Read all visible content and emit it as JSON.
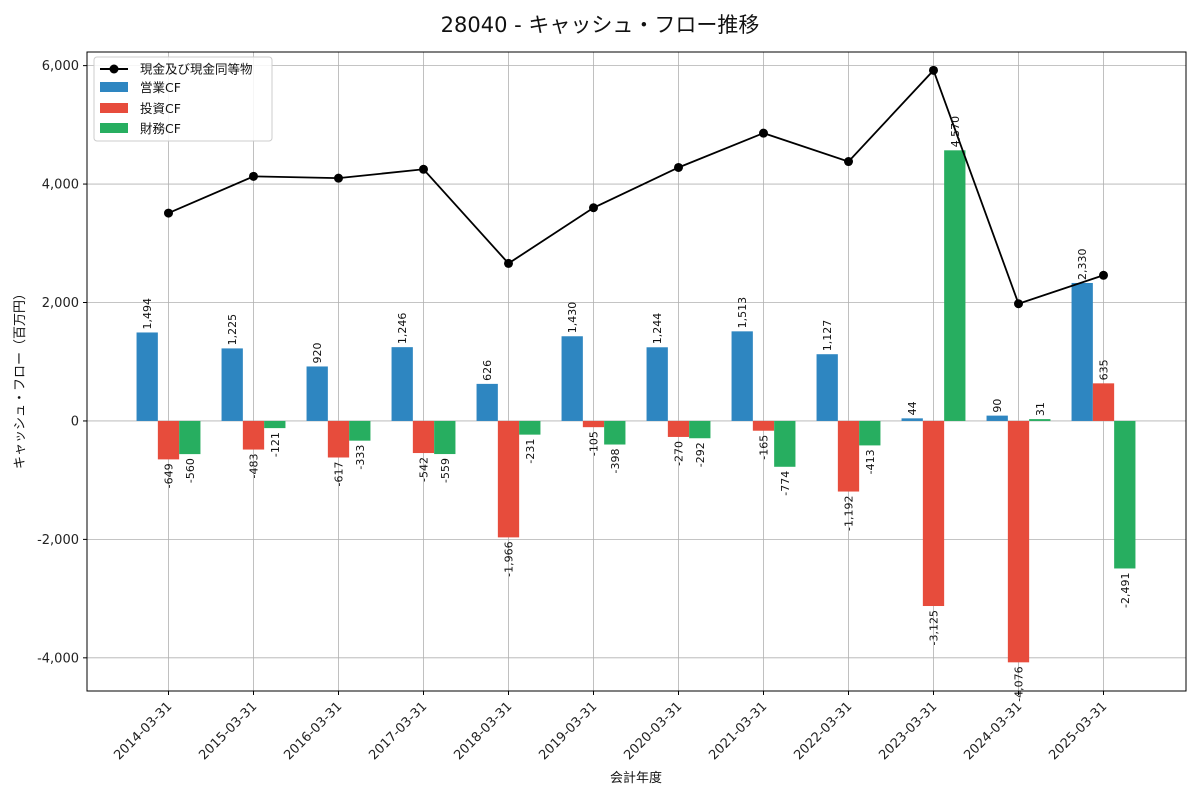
{
  "chart_data": {
    "type": "bar",
    "title": "28040 - キャッシュ・フロー推移",
    "xlabel": "会計年度",
    "ylabel": "キャッシュ・フロー（百万円）",
    "categories": [
      "2014-03-31",
      "2015-03-31",
      "2016-03-31",
      "2017-03-31",
      "2018-03-31",
      "2019-03-31",
      "2020-03-31",
      "2021-03-31",
      "2022-03-31",
      "2023-03-31",
      "2024-03-31",
      "2025-03-31"
    ],
    "ylim": [
      -4560,
      6230
    ],
    "yticks": [
      -4000,
      -2000,
      0,
      2000,
      4000,
      6000
    ],
    "ytick_labels": [
      "-4,000",
      "-2,000",
      "0",
      "2,000",
      "4,000",
      "6,000"
    ],
    "grid": true,
    "legend_position": "top-left",
    "series": [
      {
        "name": "営業CF",
        "kind": "bar",
        "color": "#2e86c1",
        "values": [
          1494,
          1225,
          920,
          1246,
          626,
          1430,
          1244,
          1513,
          1127,
          44,
          90,
          2330
        ],
        "labels": [
          "1,494",
          "1,225",
          "920",
          "1,246",
          "626",
          "1,430",
          "1,244",
          "1,513",
          "1,127",
          "44",
          "90",
          "2,330"
        ]
      },
      {
        "name": "投資CF",
        "kind": "bar",
        "color": "#e74c3c",
        "values": [
          -649,
          -483,
          -617,
          -542,
          -1966,
          -105,
          -270,
          -165,
          -1192,
          -3125,
          -4076,
          635
        ],
        "labels": [
          "-649",
          "-483",
          "-617",
          "-542",
          "-1,966",
          "-105",
          "-270",
          "-165",
          "-1,192",
          "-3,125",
          "-4,076",
          "635"
        ]
      },
      {
        "name": "財務CF",
        "kind": "bar",
        "color": "#27ae60",
        "values": [
          -560,
          -121,
          -333,
          -559,
          -231,
          -398,
          -292,
          -774,
          -413,
          4570,
          31,
          -2491
        ],
        "labels": [
          "-560",
          "-121",
          "-333",
          "-559",
          "-231",
          "-398",
          "-292",
          "-774",
          "-413",
          "4,570",
          "31",
          "-2,491"
        ]
      },
      {
        "name": "現金及び現金同等物",
        "kind": "line",
        "color": "#000000",
        "values": [
          3510,
          4130,
          4100,
          4250,
          2660,
          3600,
          4280,
          4860,
          4380,
          5920,
          1980,
          2460
        ]
      }
    ]
  }
}
